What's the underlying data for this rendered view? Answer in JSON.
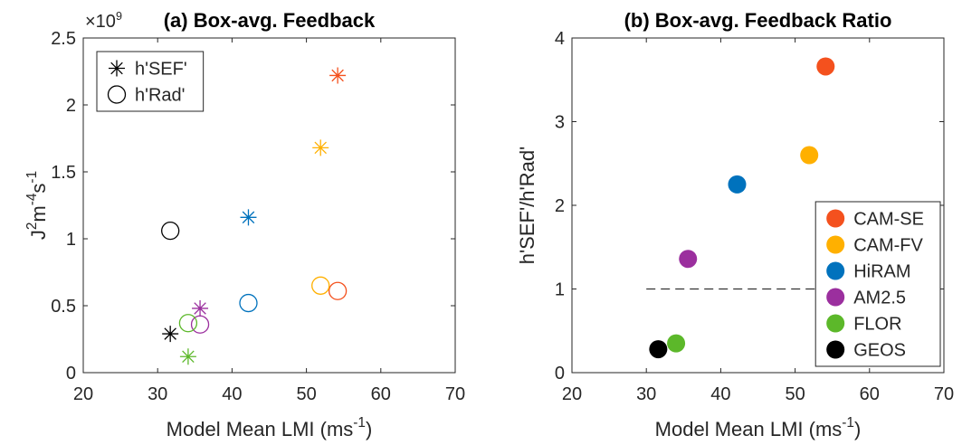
{
  "chart_data": [
    {
      "type": "scatter",
      "title": "(a) Box-avg. Feedback",
      "x_label": [
        "Model Mean LMI (ms",
        "-1",
        ")"
      ],
      "y_label": [
        "J",
        "2",
        "m",
        "-4",
        "s",
        "-1"
      ],
      "y_exponent": [
        "×10",
        "9"
      ],
      "x": [
        54.2,
        51.9,
        42.2,
        35.7,
        34.1,
        31.7
      ],
      "point_colors": [
        "#f4511e",
        "#ffb000",
        "#0072bd",
        "#9b2f9e",
        "#5cb82a",
        "#000000"
      ],
      "series": [
        {
          "name": "h'SEF'",
          "marker": "asterisk",
          "values": [
            2.22,
            1.68,
            1.16,
            0.48,
            0.12,
            0.29
          ]
        },
        {
          "name": "h'Rad'",
          "marker": "circle",
          "values": [
            0.61,
            0.65,
            0.52,
            0.36,
            0.37,
            1.06
          ]
        }
      ],
      "xlim": [
        20,
        70
      ],
      "xticks": [
        20,
        30,
        40,
        50,
        60,
        70
      ],
      "ylim": [
        0,
        2.5
      ],
      "yticks": [
        0,
        0.5,
        1,
        1.5,
        2,
        2.5
      ],
      "legend": "northwest"
    },
    {
      "type": "scatter",
      "title": "(b) Box-avg. Feedback Ratio",
      "x_label": [
        "Model Mean LMI (ms",
        "-1",
        ")"
      ],
      "y_label": [
        "h'SEF'/h'Rad'"
      ],
      "series": [
        {
          "name": "CAM-SE",
          "color": "#f4511e",
          "marker": "filled",
          "x": [
            54.1
          ],
          "values": [
            3.66
          ]
        },
        {
          "name": "CAM-FV",
          "color": "#ffb000",
          "marker": "filled",
          "x": [
            51.9
          ],
          "values": [
            2.6
          ]
        },
        {
          "name": "HiRAM",
          "color": "#0072bd",
          "marker": "filled",
          "x": [
            42.2
          ],
          "values": [
            2.25
          ]
        },
        {
          "name": "AM2.5",
          "color": "#9b2f9e",
          "marker": "filled",
          "x": [
            35.6
          ],
          "values": [
            1.36
          ]
        },
        {
          "name": "FLOR",
          "color": "#5cb82a",
          "marker": "filled",
          "x": [
            34.0
          ],
          "values": [
            0.35
          ]
        },
        {
          "name": "GEOS",
          "color": "#000000",
          "marker": "filled",
          "x": [
            31.6
          ],
          "values": [
            0.28
          ]
        }
      ],
      "reference_line": {
        "y": 1,
        "x": [
          30,
          55
        ]
      },
      "xlim": [
        20,
        70
      ],
      "xticks": [
        20,
        30,
        40,
        50,
        60,
        70
      ],
      "ylim": [
        0,
        4
      ],
      "yticks": [
        0,
        1,
        2,
        3,
        4
      ],
      "legend": "southeast"
    }
  ]
}
